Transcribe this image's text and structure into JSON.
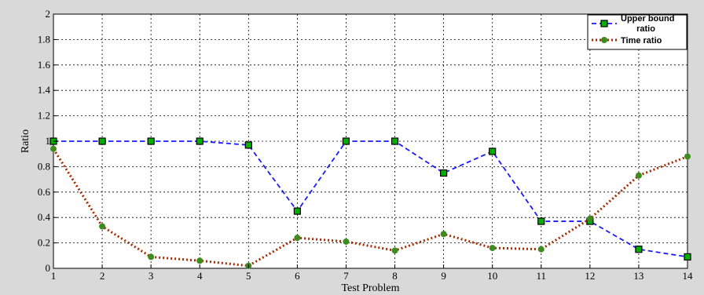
{
  "chart_data": {
    "type": "line",
    "title": "",
    "xlabel": "Test Problem",
    "ylabel": "Ratio",
    "x": [
      1,
      2,
      3,
      4,
      5,
      6,
      7,
      8,
      9,
      10,
      11,
      12,
      13,
      14
    ],
    "xlim": [
      1,
      14
    ],
    "ylim": [
      0,
      2
    ],
    "yticks": [
      "0",
      "0.2",
      "0.4",
      "0.6",
      "0.8",
      "1",
      "1.2",
      "1.4",
      "1.6",
      "1.8",
      "2"
    ],
    "xticks": [
      "1",
      "2",
      "3",
      "4",
      "5",
      "6",
      "7",
      "8",
      "9",
      "10",
      "11",
      "12",
      "13",
      "14"
    ],
    "grid": true,
    "legend_position": "top-right",
    "series": [
      {
        "name_lines": [
          "Upper bound",
          "ratio"
        ],
        "name": "Upper bound ratio",
        "values": [
          1.0,
          1.0,
          1.0,
          1.0,
          0.97,
          0.45,
          1.0,
          1.0,
          0.75,
          0.92,
          0.37,
          0.37,
          0.15,
          0.09
        ],
        "color": "#1a1aff",
        "marker": "square",
        "marker_color": "#00b000",
        "line_style": "dashed"
      },
      {
        "name_lines": [
          "Time ratio"
        ],
        "name": "Time ratio",
        "values": [
          0.94,
          0.33,
          0.09,
          0.06,
          0.02,
          0.24,
          0.21,
          0.14,
          0.27,
          0.16,
          0.15,
          0.39,
          0.73,
          0.88
        ],
        "color": "#a52a00",
        "marker": "circle",
        "marker_color": "#3c8c1e",
        "line_style": "dotted"
      }
    ]
  }
}
